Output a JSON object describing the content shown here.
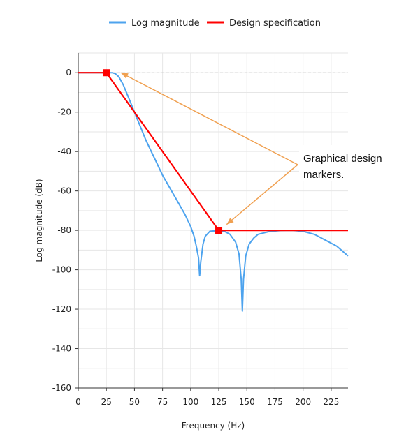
{
  "chart_data": {
    "type": "line",
    "xlabel": "Frequency (Hz)",
    "ylabel": "Log magnitude (dB)",
    "xlim": [
      0,
      240
    ],
    "ylim": [
      -160,
      10
    ],
    "x_ticks": [
      0,
      25,
      50,
      75,
      100,
      125,
      150,
      175,
      200,
      225
    ],
    "y_ticks": [
      0,
      -20,
      -40,
      -60,
      -80,
      -100,
      -120,
      -140,
      -160
    ],
    "x_tick_labels": [
      "0",
      "25",
      "50",
      "75",
      "100",
      "125",
      "150",
      "175",
      "200",
      "225"
    ],
    "y_tick_labels": [
      "0",
      "-20",
      "-40",
      "-60",
      "-80",
      "-100",
      "-120",
      "-140",
      "-160"
    ],
    "grid": true,
    "legend_position": "top-center",
    "series": [
      {
        "name": "Log magnitude",
        "color": "#4da3ee",
        "x": [
          0,
          30,
          33,
          36,
          40,
          45,
          50,
          55,
          60,
          65,
          70,
          75,
          80,
          85,
          90,
          95,
          100,
          103,
          105,
          107,
          108,
          109,
          111,
          113,
          117,
          120,
          125,
          130,
          135,
          140,
          143,
          145,
          146,
          147,
          149,
          152,
          156,
          160,
          170,
          180,
          190,
          200,
          210,
          220,
          230,
          240
        ],
        "y": [
          0,
          0,
          -0.5,
          -2,
          -6,
          -13,
          -20,
          -27,
          -34,
          -40,
          -46,
          -52,
          -57,
          -62,
          -67,
          -72,
          -78,
          -83,
          -88,
          -94,
          -103,
          -96,
          -87,
          -83,
          -80.5,
          -80.3,
          -80.2,
          -80.5,
          -82,
          -86,
          -92,
          -105,
          -121,
          -105,
          -93,
          -87,
          -84,
          -82,
          -80.6,
          -80.1,
          -80,
          -80.5,
          -82,
          -85,
          -88,
          -93
        ]
      },
      {
        "name": "Design specification",
        "color": "#ff0000",
        "x": [
          0,
          25,
          125,
          240
        ],
        "y": [
          0,
          0,
          -80,
          -80
        ]
      }
    ],
    "reference_line": {
      "y": 0,
      "color": "#bbbbbb"
    },
    "markers": [
      {
        "x": 25,
        "y": 0,
        "color": "#ff0000"
      },
      {
        "x": 125,
        "y": -80,
        "color": "#ff0000"
      }
    ],
    "annotation": {
      "lines": [
        "Graphical design",
        "markers."
      ],
      "color": "#f0a050",
      "arrow_tips": [
        {
          "x": 38,
          "y": 0
        },
        {
          "x": 132,
          "y": -77
        }
      ]
    }
  }
}
